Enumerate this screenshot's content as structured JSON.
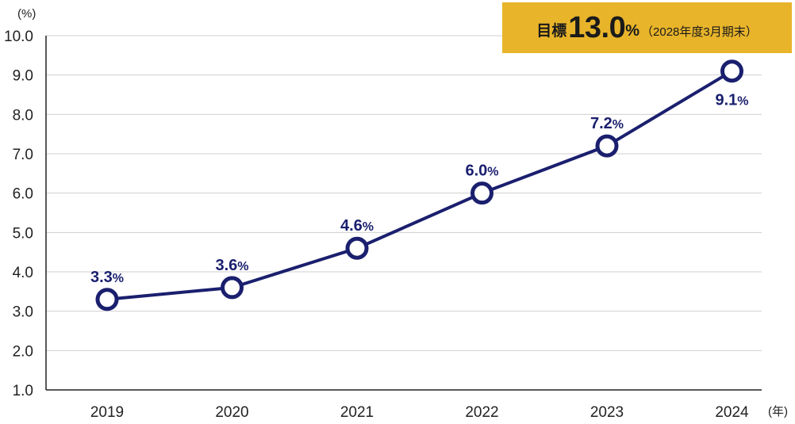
{
  "chart_data": {
    "type": "line",
    "categories": [
      "2019",
      "2020",
      "2021",
      "2022",
      "2023",
      "2024"
    ],
    "series": [
      {
        "values": [
          3.3,
          3.6,
          4.6,
          6.0,
          7.2,
          9.1
        ],
        "color": "#1a1f6e"
      }
    ],
    "data_labels": [
      "3.3",
      "3.6",
      "4.6",
      "6.0",
      "7.2",
      "9.1"
    ],
    "data_label_unit": "%",
    "y_ticks": [
      "1.0",
      "2.0",
      "3.0",
      "4.0",
      "5.0",
      "6.0",
      "7.0",
      "8.0",
      "9.0",
      "10.0"
    ],
    "ylim": [
      1.0,
      10.0
    ],
    "y_unit": "(%)",
    "x_unit": "(年)",
    "grid": true,
    "target": {
      "label": "目標",
      "value": "13.0",
      "unit": "%",
      "note": "（2028年度3月期末）",
      "color": "#e8b42a"
    }
  }
}
